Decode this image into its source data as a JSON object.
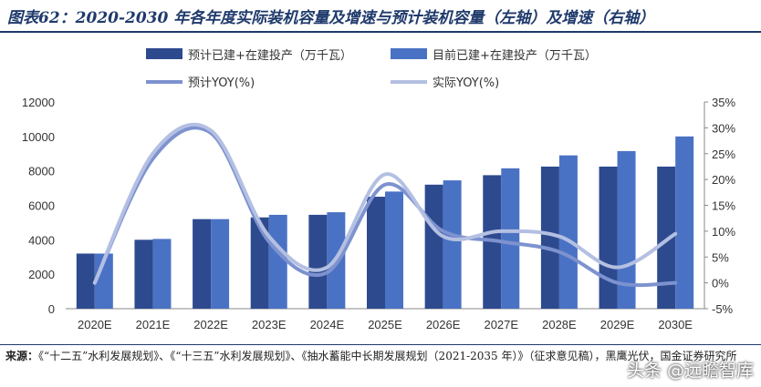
{
  "title": "图表62：2020-2030 年各年度实际装机容量及增速与预计装机容量（左轴）及增速（右轴）",
  "source": {
    "label": "来源：",
    "text": "《“十二五”水利发展规划》、《“十三五”水利发展规划》、《抽水蓄能中长期发展规划（2021-2035 年）》（征求意见稿），黑鹰光伏，国金证券研究所"
  },
  "watermark": "头条 @远瞻智库",
  "colors": {
    "bar_planned": "#2e4a8f",
    "bar_current": "#4a72c4",
    "line_planned": "#7d92cf",
    "line_actual": "#b4c0e2",
    "title": "#1f3a6b"
  },
  "chart_data": {
    "type": "bar",
    "categories": [
      "2020E",
      "2021E",
      "2022E",
      "2023E",
      "2024E",
      "2025E",
      "2026E",
      "2027E",
      "2028E",
      "2029E",
      "2030E"
    ],
    "series": [
      {
        "name": "预计已建+在建投产（万千瓦）",
        "type": "bar",
        "axis": "left",
        "values": [
          3200,
          4000,
          5200,
          5300,
          5450,
          6500,
          7200,
          7750,
          8250,
          8250,
          8250
        ]
      },
      {
        "name": "目前已建+在建投产（万千瓦）",
        "type": "bar",
        "axis": "left",
        "values": [
          3200,
          4050,
          5200,
          5450,
          5600,
          6800,
          7450,
          8150,
          8900,
          9150,
          10000
        ]
      },
      {
        "name": "预计YOY(%)",
        "type": "line",
        "axis": "right",
        "values": [
          0,
          24,
          29,
          8,
          2,
          19,
          10,
          8,
          6,
          0,
          0
        ]
      },
      {
        "name": "实际YOY(%)",
        "type": "line",
        "axis": "right",
        "values": [
          0,
          25,
          29.5,
          9,
          3,
          21,
          9,
          10,
          9,
          3,
          9.5
        ]
      }
    ],
    "y_left": {
      "min": 0,
      "max": 12000,
      "ticks": [
        "0",
        "2000",
        "4000",
        "6000",
        "8000",
        "10000",
        "12000"
      ]
    },
    "y_right": {
      "min": -5,
      "max": 35,
      "ticks": [
        "-5%",
        "0%",
        "5%",
        "10%",
        "15%",
        "20%",
        "25%",
        "30%",
        "35%"
      ]
    },
    "legend_position": "top",
    "grid": false
  }
}
